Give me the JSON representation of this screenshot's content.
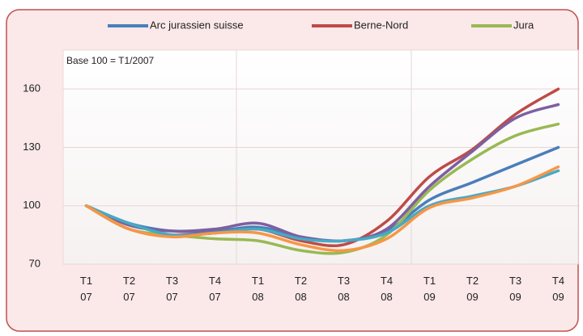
{
  "chart_data": {
    "type": "line",
    "annotation": "Base 100 = T1/2007",
    "categories": [
      [
        "T1",
        "07"
      ],
      [
        "T2",
        "07"
      ],
      [
        "T3",
        "07"
      ],
      [
        "T4",
        "07"
      ],
      [
        "T1",
        "08"
      ],
      [
        "T2",
        "08"
      ],
      [
        "T3",
        "08"
      ],
      [
        "T4",
        "08"
      ],
      [
        "T1",
        "09"
      ],
      [
        "T2",
        "09"
      ],
      [
        "T3",
        "09"
      ],
      [
        "T4",
        "09"
      ]
    ],
    "series": [
      {
        "name": "Arc jurassien suisse",
        "color": "#4a7ebb",
        "values": [
          100,
          91,
          87,
          87,
          89,
          84,
          82,
          87,
          103,
          112,
          121,
          130
        ]
      },
      {
        "name": "Berne-Nord",
        "color": "#be4b48",
        "values": [
          100,
          88,
          85,
          86,
          88,
          82,
          80,
          92,
          115,
          129,
          147,
          160
        ]
      },
      {
        "name": "Jura",
        "color": "#98b954",
        "values": [
          100,
          88,
          85,
          83,
          82,
          77,
          76,
          85,
          108,
          124,
          136,
          142
        ]
      },
      {
        "color": "#7d60a0",
        "values": [
          100,
          90,
          87,
          88,
          91,
          84,
          82,
          88,
          110,
          128,
          145,
          152
        ]
      },
      {
        "color": "#46aac5",
        "values": [
          100,
          91,
          85,
          86,
          88,
          83,
          82,
          86,
          100,
          105,
          110,
          118
        ]
      },
      {
        "color": "#f79646",
        "values": [
          100,
          88,
          84,
          86,
          86,
          80,
          77,
          83,
          99,
          104,
          110,
          120
        ]
      }
    ],
    "ylim": [
      70,
      180
    ],
    "yticks": [
      70,
      100,
      130,
      160
    ],
    "grid": true
  }
}
